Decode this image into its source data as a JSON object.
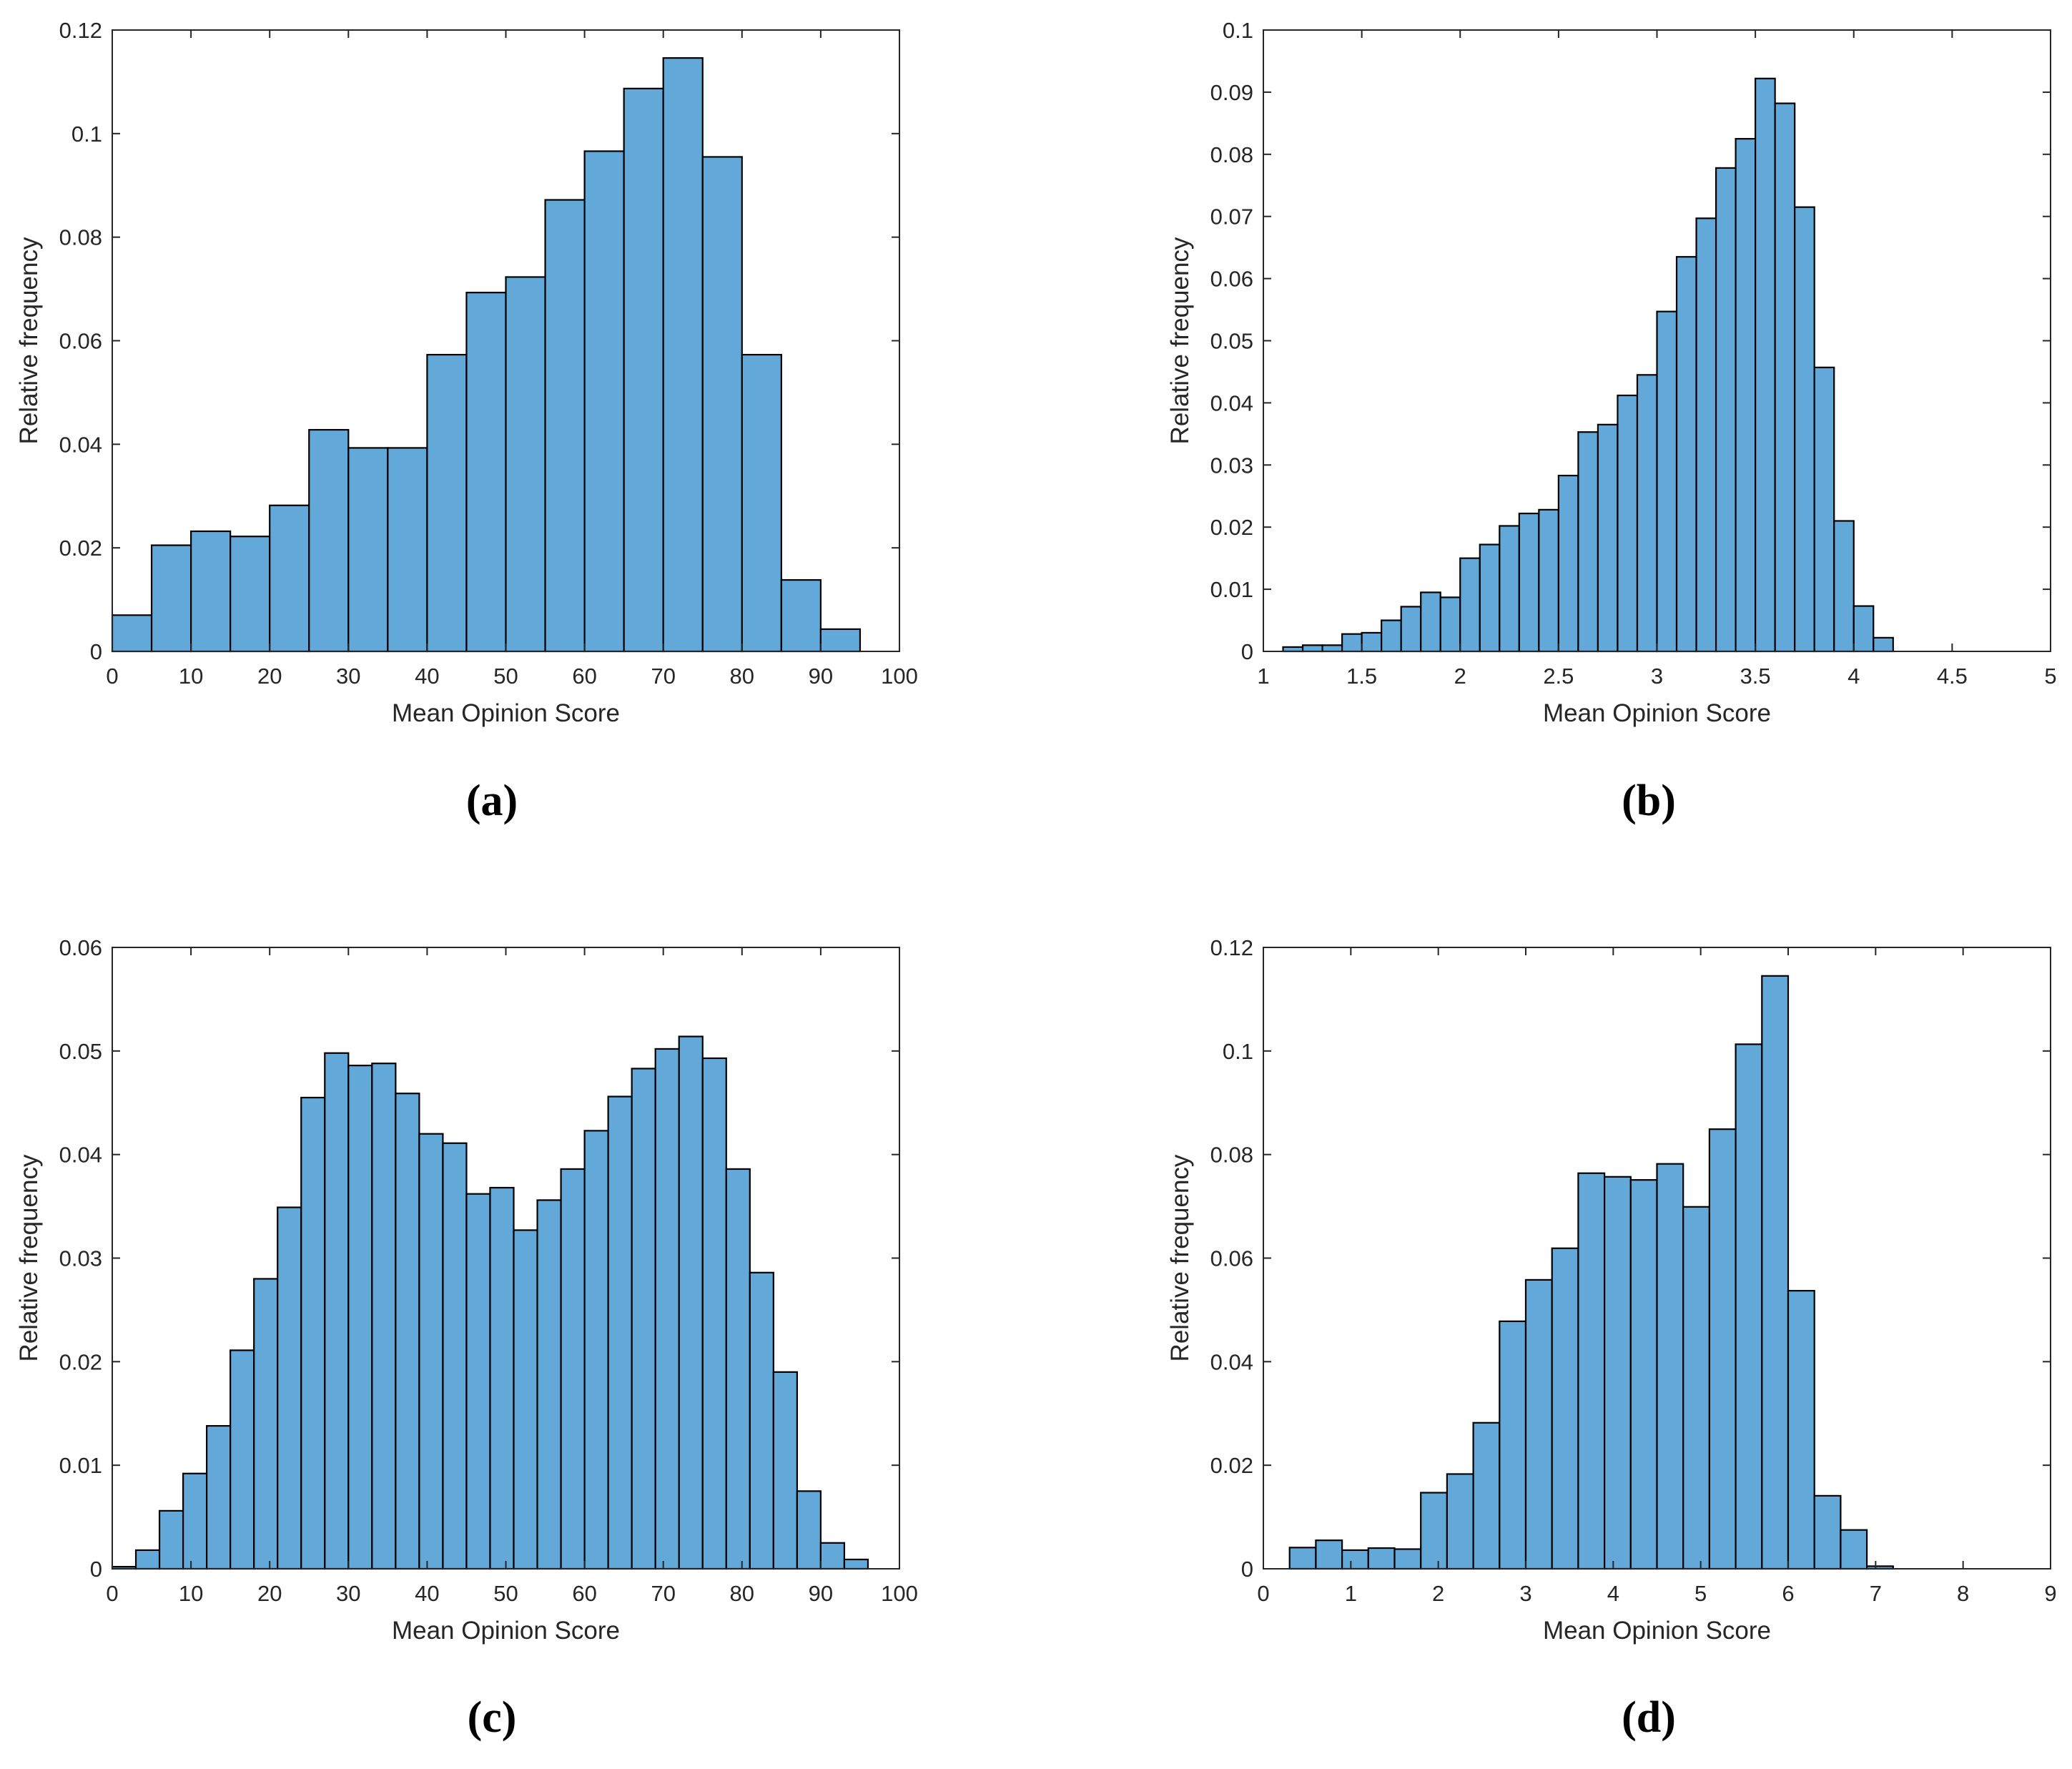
{
  "colors": {
    "bar_fill": "#62a8d8",
    "bar_edge": "#000000",
    "axis": "#262626",
    "background": "#ffffff"
  },
  "captions": {
    "a": "(a)",
    "b": "(b)",
    "c": "(c)",
    "d": "(d)"
  },
  "chart_data": [
    {
      "id": "a",
      "type": "bar",
      "xlabel": "Mean Opinion Score",
      "ylabel": "Relative frequency",
      "xlim": [
        0,
        100
      ],
      "ylim": [
        0,
        0.12
      ],
      "xticks": [
        0,
        10,
        20,
        30,
        40,
        50,
        60,
        70,
        80,
        90,
        100
      ],
      "xtick_labels": [
        "0",
        "10",
        "20",
        "30",
        "40",
        "50",
        "60",
        "70",
        "80",
        "90",
        "100"
      ],
      "yticks": [
        0,
        0.02,
        0.04,
        0.06,
        0.08,
        0.1,
        0.12
      ],
      "ytick_labels": [
        "0",
        "0.02",
        "0.04",
        "0.06",
        "0.08",
        "0.1",
        "0.12"
      ],
      "bin_edges": [
        0,
        5,
        10,
        15,
        20,
        25,
        30,
        35,
        40,
        45,
        50,
        55,
        60,
        65,
        70,
        75,
        80,
        85,
        90,
        95
      ],
      "values": [
        0.007,
        0.0205,
        0.0232,
        0.0222,
        0.0282,
        0.0428,
        0.0393,
        0.0393,
        0.0573,
        0.0693,
        0.0723,
        0.0872,
        0.0966,
        0.1087,
        0.1146,
        0.0955,
        0.0573,
        0.0138,
        0.0043
      ]
    },
    {
      "id": "b",
      "type": "bar",
      "xlabel": "Mean Opinion Score",
      "ylabel": "Relative frequency",
      "xlim": [
        1,
        5
      ],
      "ylim": [
        0,
        0.1
      ],
      "xticks": [
        1,
        1.5,
        2,
        2.5,
        3,
        3.5,
        4,
        4.5,
        5
      ],
      "xtick_labels": [
        "1",
        "1.5",
        "2",
        "2.5",
        "3",
        "3.5",
        "4",
        "4.5",
        "5"
      ],
      "yticks": [
        0,
        0.01,
        0.02,
        0.03,
        0.04,
        0.05,
        0.06,
        0.07,
        0.08,
        0.09,
        0.1
      ],
      "ytick_labels": [
        "0",
        "0.01",
        "0.02",
        "0.03",
        "0.04",
        "0.05",
        "0.06",
        "0.07",
        "0.08",
        "0.09",
        "0.1"
      ],
      "bin_edges": [
        1.1,
        1.2,
        1.3,
        1.4,
        1.5,
        1.6,
        1.7,
        1.8,
        1.9,
        2.0,
        2.1,
        2.2,
        2.3,
        2.4,
        2.5,
        2.6,
        2.7,
        2.8,
        2.9,
        3.0,
        3.1,
        3.2,
        3.3,
        3.4,
        3.5,
        3.6,
        3.7,
        3.8,
        3.9,
        4.0,
        4.1
      ],
      "values": [
        0.0007,
        0.001,
        0.001,
        0.0028,
        0.003,
        0.005,
        0.0072,
        0.0095,
        0.0087,
        0.015,
        0.0172,
        0.0202,
        0.0222,
        0.0228,
        0.0283,
        0.0353,
        0.0365,
        0.0412,
        0.0445,
        0.0547,
        0.0635,
        0.0697,
        0.0778,
        0.0825,
        0.0922,
        0.0882,
        0.0715,
        0.0457,
        0.021,
        0.0073,
        0.0022
      ]
    },
    {
      "id": "c",
      "type": "bar",
      "xlabel": "Mean Opinion Score",
      "ylabel": "Relative frequency",
      "xlim": [
        0,
        100
      ],
      "ylim": [
        0,
        0.06
      ],
      "xticks": [
        0,
        10,
        20,
        30,
        40,
        50,
        60,
        70,
        80,
        90,
        100
      ],
      "xtick_labels": [
        "0",
        "10",
        "20",
        "30",
        "40",
        "50",
        "60",
        "70",
        "80",
        "90",
        "100"
      ],
      "yticks": [
        0,
        0.01,
        0.02,
        0.03,
        0.04,
        0.05,
        0.06
      ],
      "ytick_labels": [
        "0",
        "0.01",
        "0.02",
        "0.03",
        "0.04",
        "0.05",
        "0.06"
      ],
      "bin_edges": [
        0,
        3,
        6,
        9,
        12,
        15,
        18,
        21,
        24,
        27,
        30,
        33,
        36,
        39,
        42,
        45,
        48,
        51,
        54,
        57,
        60,
        63,
        66,
        69,
        72,
        75,
        78,
        81,
        84,
        87,
        90,
        93
      ],
      "values": [
        0.0002,
        0.0018,
        0.0056,
        0.0092,
        0.0138,
        0.0211,
        0.028,
        0.0349,
        0.0455,
        0.0498,
        0.0486,
        0.0488,
        0.0459,
        0.042,
        0.0411,
        0.0362,
        0.0368,
        0.0327,
        0.0356,
        0.0386,
        0.0423,
        0.0456,
        0.0483,
        0.0502,
        0.0514,
        0.0493,
        0.0386,
        0.0286,
        0.019,
        0.0075,
        0.0025,
        0.0009
      ]
    },
    {
      "id": "d",
      "type": "bar",
      "xlabel": "Mean Opinion Score",
      "ylabel": "Relative frequency",
      "xlim": [
        0,
        9
      ],
      "ylim": [
        0,
        0.12
      ],
      "xticks": [
        0,
        1,
        2,
        3,
        4,
        5,
        6,
        7,
        8,
        9
      ],
      "xtick_labels": [
        "0",
        "1",
        "2",
        "3",
        "4",
        "5",
        "6",
        "7",
        "8",
        "9"
      ],
      "yticks": [
        0,
        0.02,
        0.04,
        0.06,
        0.08,
        0.1,
        0.12
      ],
      "ytick_labels": [
        "0",
        "0.02",
        "0.04",
        "0.06",
        "0.08",
        "0.1",
        "0.12"
      ],
      "bin_edges": [
        0.3,
        0.6,
        0.9,
        1.2,
        1.5,
        1.8,
        2.1,
        2.4,
        2.7,
        3.0,
        3.3,
        3.6,
        3.9,
        4.2,
        4.5,
        4.8,
        5.1,
        5.4,
        5.7,
        6.0,
        6.3,
        6.6,
        6.9
      ],
      "values": [
        0.0041,
        0.0055,
        0.0036,
        0.004,
        0.0038,
        0.0147,
        0.0183,
        0.0282,
        0.0478,
        0.0558,
        0.0619,
        0.0764,
        0.0757,
        0.0751,
        0.0782,
        0.0699,
        0.0849,
        0.1013,
        0.1145,
        0.0537,
        0.0141,
        0.0075,
        0.0005
      ]
    }
  ]
}
